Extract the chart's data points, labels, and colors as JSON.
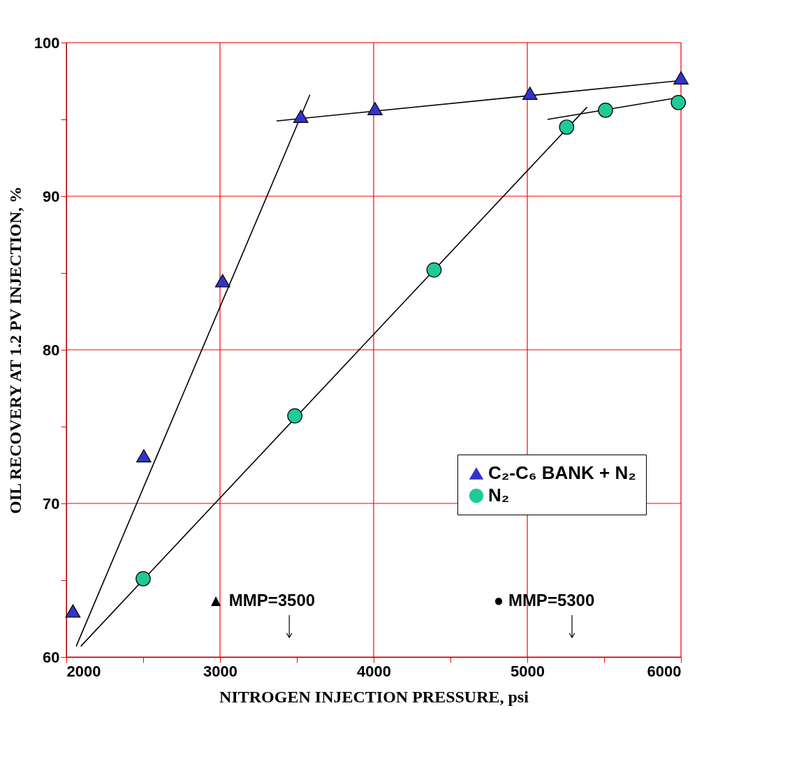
{
  "chart_data": {
    "type": "scatter",
    "xlabel": "NITROGEN INJECTION PRESSURE, psi",
    "ylabel": "OIL RECOVERY AT 1.2 PV INJECTION, %",
    "xlim": [
      2000,
      6000
    ],
    "ylim": [
      60,
      100
    ],
    "xticks": [
      2000,
      {
        "value": 2500,
        "label": null
      },
      3000,
      {
        "value": 3500,
        "label": null
      },
      4000,
      {
        "value": 4500,
        "label": null
      },
      5000,
      {
        "value": 5500,
        "label": null
      },
      6000
    ],
    "yticks": [
      60,
      {
        "value": 65,
        "label": null
      },
      70,
      {
        "value": 75,
        "label": null
      },
      80,
      {
        "value": 85,
        "label": null
      },
      90,
      {
        "value": 95,
        "label": null
      },
      100
    ],
    "grid": true,
    "legend": "right",
    "series": [
      {
        "name": "C₂-C₆ BANK + N₂",
        "marker": "triangle",
        "color": "#3333cc",
        "x": [
          2043,
          2504,
          3017,
          3526,
          4009,
          5017,
          6000
        ],
        "values": [
          63.0,
          73.1,
          84.5,
          95.2,
          95.7,
          96.7,
          97.7
        ]
      },
      {
        "name": "N₂",
        "marker": "circle",
        "color": "#20c997",
        "x": [
          2500,
          3487,
          4393,
          5256,
          5509,
          5983
        ],
        "values": [
          65.1,
          75.7,
          85.2,
          94.5,
          95.6,
          96.1
        ]
      },
      {
        "type": "line",
        "color": "#000000",
        "line_style": "solid",
        "x": [
          2064,
          3585
        ],
        "values": [
          60.7,
          96.6
        ]
      },
      {
        "type": "line",
        "color": "#000000",
        "line_style": "solid",
        "x": [
          3368,
          5970
        ],
        "values": [
          94.9,
          97.5
        ]
      },
      {
        "type": "line",
        "color": "#000000",
        "line_style": "solid",
        "x": [
          2094,
          5389
        ],
        "values": [
          60.7,
          95.8
        ]
      },
      {
        "type": "line",
        "color": "#000000",
        "line_style": "solid",
        "x": [
          5132,
          5970
        ],
        "values": [
          95.0,
          96.4
        ]
      }
    ],
    "annotations": [
      "▲ MMP=3500",
      "● MMP=5300"
    ]
  }
}
